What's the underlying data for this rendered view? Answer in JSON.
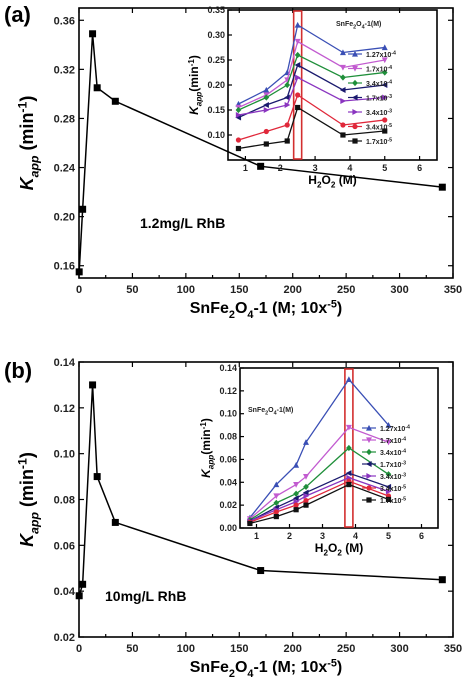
{
  "chart_data": [
    {
      "type": "line",
      "panel": "(a)",
      "ylabel": "K_app (min^-1)",
      "xlabel": "SnFe2O4-1 (M; 10x-5)",
      "annotation": "1.2mg/L RhB",
      "xlim": [
        0,
        350
      ],
      "ylim": [
        0.15,
        0.37
      ],
      "xticks": [
        "0",
        "50",
        "100",
        "150",
        "200",
        "250",
        "300",
        "350"
      ],
      "yticks": [
        "0.16",
        "0.20",
        "0.24",
        "0.28",
        "0.32",
        "0.36"
      ],
      "series": [
        {
          "x": [
            0.17,
            3.4,
            12.7,
            17,
            34,
            170,
            340
          ],
          "y": [
            0.155,
            0.206,
            0.349,
            0.305,
            0.294,
            0.241,
            0.224
          ]
        }
      ],
      "inset": {
        "xlabel": "H2O2 (M)",
        "ylabel": "K_app(min^-1)",
        "legend_title": "SnFe2O4-1(M)",
        "xlim": [
          0.5,
          6.5
        ],
        "ylim": [
          0.05,
          0.35
        ],
        "xticks": [
          "1",
          "2",
          "3",
          "4",
          "5",
          "6"
        ],
        "yticks": [
          "0.10",
          "0.15",
          "0.20",
          "0.25",
          "0.30",
          "0.35"
        ],
        "highlight_x": 2.5,
        "x": [
          0.8,
          1.6,
          2.2,
          2.5,
          3.8,
          5.0
        ],
        "series": [
          {
            "name": "1.27x10-4",
            "color": "#3a4fb5",
            "marker": "tri-up",
            "y": [
              0.162,
              0.19,
              0.225,
              0.32,
              0.265,
              0.275
            ]
          },
          {
            "name": "1.7x10-4",
            "color": "#c25bd0",
            "marker": "tri-down",
            "y": [
              0.155,
              0.18,
              0.21,
              0.287,
              0.235,
              0.25
            ]
          },
          {
            "name": "3.4x10-4",
            "color": "#1f8f3a",
            "marker": "diamond",
            "y": [
              0.15,
              0.175,
              0.2,
              0.26,
              0.215,
              0.225
            ]
          },
          {
            "name": "1.7x10-3",
            "color": "#1a1a6e",
            "marker": "tri-left",
            "y": [
              0.135,
              0.16,
              0.175,
              0.24,
              0.19,
              0.2
            ]
          },
          {
            "name": "3.4x10-3",
            "color": "#8a35c0",
            "marker": "tri-right",
            "y": [
              0.14,
              0.15,
              0.16,
              0.215,
              0.168,
              0.175
            ]
          },
          {
            "name": "3.4x10-5",
            "color": "#e0283a",
            "marker": "circle",
            "y": [
              0.09,
              0.107,
              0.12,
              0.18,
              0.12,
              0.13
            ]
          },
          {
            "name": "1.7x10-5",
            "color": "#111111",
            "marker": "square",
            "y": [
              0.073,
              0.082,
              0.088,
              0.155,
              0.1,
              0.108
            ]
          }
        ]
      }
    },
    {
      "type": "line",
      "panel": "(b)",
      "ylabel": "K_app (min^-1)",
      "xlabel": "SnFe2O4-1 (M; 10x-5)",
      "annotation": "10mg/L RhB",
      "xlim": [
        0,
        350
      ],
      "ylim": [
        0.02,
        0.14
      ],
      "xticks": [
        "0",
        "50",
        "100",
        "150",
        "200",
        "250",
        "300",
        "350"
      ],
      "yticks": [
        "0.02",
        "0.04",
        "0.06",
        "0.08",
        "0.10",
        "0.12",
        "0.14"
      ],
      "series": [
        {
          "x": [
            0.17,
            3.4,
            12.7,
            17,
            34,
            170,
            340
          ],
          "y": [
            0.038,
            0.043,
            0.13,
            0.09,
            0.07,
            0.049,
            0.045
          ]
        }
      ],
      "inset": {
        "xlabel": "H2O2 (M)",
        "ylabel": "K_app(min^-1)",
        "legend_title": "SnFe2O4-1(M)",
        "xlim": [
          0.5,
          6.5
        ],
        "ylim": [
          0,
          0.14
        ],
        "xticks": [
          "1",
          "2",
          "3",
          "4",
          "5",
          "6"
        ],
        "yticks": [
          "0.00",
          "0.02",
          "0.04",
          "0.06",
          "0.08",
          "0.10",
          "0.12",
          "0.14"
        ],
        "highlight_x": 3.8,
        "x": [
          0.8,
          1.6,
          2.2,
          2.5,
          3.8,
          5.0
        ],
        "series": [
          {
            "name": "1.27x10-4",
            "color": "#3a4fb5",
            "marker": "tri-up",
            "y": [
              0.009,
              0.038,
              0.055,
              0.075,
              0.13,
              0.09
            ]
          },
          {
            "name": "1.7x10-4",
            "color": "#c25bd0",
            "marker": "tri-down",
            "y": [
              0.008,
              0.028,
              0.038,
              0.045,
              0.088,
              0.075
            ]
          },
          {
            "name": "3.4x10-4",
            "color": "#1f8f3a",
            "marker": "diamond",
            "y": [
              0.007,
              0.022,
              0.03,
              0.036,
              0.07,
              0.047
            ]
          },
          {
            "name": "1.7x10-3",
            "color": "#1a1a6e",
            "marker": "tri-left",
            "y": [
              0.006,
              0.018,
              0.026,
              0.031,
              0.048,
              0.036
            ]
          },
          {
            "name": "3.4x10-3",
            "color": "#8a35c0",
            "marker": "tri-right",
            "y": [
              0.006,
              0.016,
              0.023,
              0.028,
              0.044,
              0.032
            ]
          },
          {
            "name": "3.4x10-5",
            "color": "#e0283a",
            "marker": "circle",
            "y": [
              0.005,
              0.014,
              0.02,
              0.024,
              0.041,
              0.028
            ]
          },
          {
            "name": "1.7x10-5",
            "color": "#111111",
            "marker": "square",
            "y": [
              0.004,
              0.01,
              0.016,
              0.02,
              0.038,
              0.025
            ]
          }
        ]
      }
    }
  ]
}
